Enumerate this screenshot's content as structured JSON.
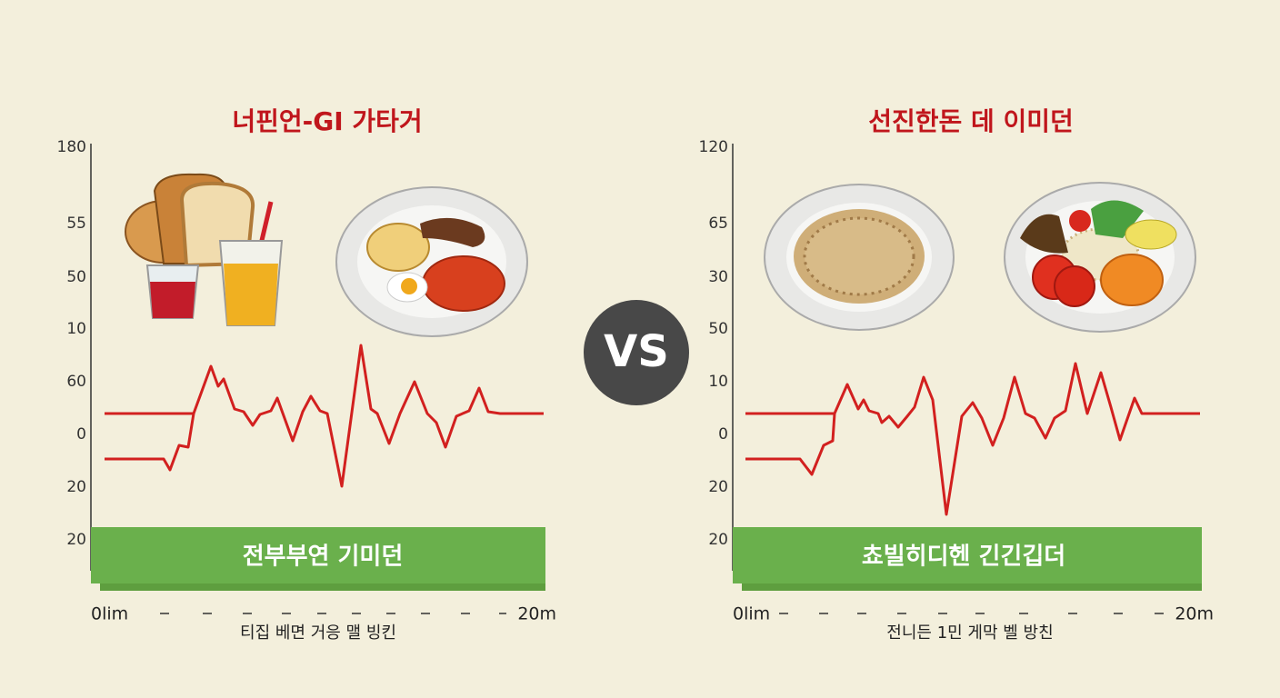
{
  "vs": "VS",
  "panels": [
    {
      "title": "너핀언-GI 가타거",
      "y_labels": [
        "180",
        "55",
        "50",
        "10",
        "60",
        "0",
        "20",
        "20"
      ],
      "banner": "전부부연 기미던",
      "x_start": "0lim",
      "x_end": "20m",
      "caption": "티집 베면 거응 맬 빙킨"
    },
    {
      "title": "선진한돈 데 이미던",
      "y_labels": [
        "120",
        "65",
        "30",
        "50",
        "10",
        "0",
        "20",
        "20"
      ],
      "banner": "쵸빌히디헨 긴긴깁더",
      "x_start": "0lim",
      "x_end": "20m",
      "caption": "전니든 1민 게막 벨 방친"
    }
  ]
}
